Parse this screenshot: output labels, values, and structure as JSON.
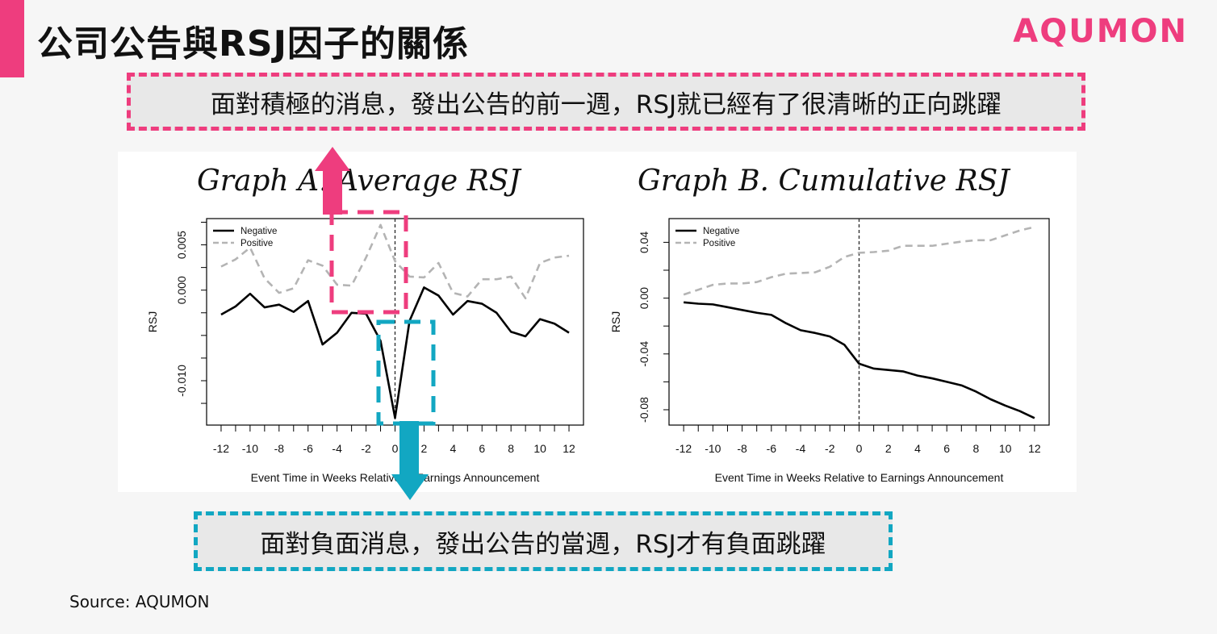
{
  "header": {
    "title": "公司公告與RSJ因子的關係",
    "brand": "AQUMON"
  },
  "callouts": {
    "top": "面對積極的消息，發出公告的前一週，RSJ就已經有了很清晰的正向跳躍",
    "bottom": "面對負面消息，發出公告的當週，RSJ才有負面跳躍"
  },
  "footer": {
    "source": "Source: AQUMON"
  },
  "colors": {
    "accent": "#ee3d7e",
    "teal": "#12a7c2",
    "negative": "#000000",
    "positive": "#b4b4b4"
  },
  "chart_data": [
    {
      "type": "line",
      "title": "Graph A. Average RSJ",
      "xlabel": "Event Time in Weeks Relative to Earnings Announcement",
      "ylabel": "RSJ",
      "xlim": [
        -13,
        13
      ],
      "ylim": [
        -0.0149,
        0.0079
      ],
      "xticks": [
        -12,
        -10,
        -8,
        -6,
        -4,
        -2,
        0,
        2,
        4,
        6,
        8,
        10,
        12
      ],
      "yticks": [
        -0.01,
        0.0,
        0.005
      ],
      "ytick_labels": [
        "-0.010",
        "0.000",
        "0.005"
      ],
      "legend": "top-left",
      "x": [
        -12,
        -11,
        -10,
        -9,
        -8,
        -7,
        -6,
        -5,
        -4,
        -3,
        -2,
        -1,
        0,
        1,
        2,
        3,
        4,
        5,
        6,
        7,
        8,
        9,
        10,
        11,
        12
      ],
      "series": [
        {
          "name": "Negative",
          "style": "solid",
          "values": [
            -0.0027,
            -0.0018,
            -0.0004,
            -0.0019,
            -0.0016,
            -0.0024,
            -0.0012,
            -0.006,
            -0.0047,
            -0.0025,
            -0.0026,
            -0.0056,
            -0.0141,
            -0.0034,
            0.0003,
            -0.0006,
            -0.0027,
            -0.0012,
            -0.0015,
            -0.0025,
            -0.0046,
            -0.0051,
            -0.0032,
            -0.0037,
            -0.0047
          ]
        },
        {
          "name": "Positive",
          "style": "dashed",
          "values": [
            0.0026,
            0.0034,
            0.0047,
            0.0013,
            -0.0003,
            0.0002,
            0.0033,
            0.0027,
            0.0006,
            0.0005,
            0.0036,
            0.0072,
            0.0032,
            0.0015,
            0.0014,
            0.003,
            -0.0003,
            -0.0007,
            0.0012,
            0.0012,
            0.0015,
            -0.0009,
            0.003,
            0.0036,
            0.0038
          ]
        }
      ]
    },
    {
      "type": "line",
      "title": "Graph B. Cumulative RSJ",
      "xlabel": "Event Time in Weeks Relative to Earnings Announcement",
      "ylabel": "RSJ",
      "xlim": [
        -13,
        13
      ],
      "ylim": [
        -0.091,
        0.057
      ],
      "xticks": [
        -12,
        -10,
        -8,
        -6,
        -4,
        -2,
        0,
        2,
        4,
        6,
        8,
        10,
        12
      ],
      "yticks": [
        -0.08,
        -0.04,
        0.0,
        0.04
      ],
      "ytick_labels": [
        "-0.08",
        "-0.04",
        "0.00",
        "0.04"
      ],
      "legend": "top-left",
      "x": [
        -12,
        -11,
        -10,
        -9,
        -8,
        -7,
        -6,
        -5,
        -4,
        -3,
        -2,
        -1,
        0,
        1,
        2,
        3,
        4,
        5,
        6,
        7,
        8,
        9,
        10,
        11,
        12
      ],
      "series": [
        {
          "name": "Negative",
          "style": "solid",
          "values": [
            -0.003,
            -0.004,
            -0.0045,
            -0.0065,
            -0.0085,
            -0.0105,
            -0.012,
            -0.018,
            -0.023,
            -0.025,
            -0.0275,
            -0.0335,
            -0.047,
            -0.0505,
            -0.0515,
            -0.0525,
            -0.0555,
            -0.0575,
            -0.06,
            -0.0625,
            -0.067,
            -0.0725,
            -0.077,
            -0.081,
            -0.086
          ]
        },
        {
          "name": "Positive",
          "style": "dashed",
          "values": [
            0.0025,
            0.006,
            0.0095,
            0.0105,
            0.0105,
            0.0115,
            0.015,
            0.0175,
            0.018,
            0.0185,
            0.0225,
            0.0295,
            0.0325,
            0.033,
            0.034,
            0.0375,
            0.0375,
            0.0375,
            0.039,
            0.0405,
            0.0415,
            0.0415,
            0.045,
            0.0485,
            0.051
          ]
        }
      ]
    }
  ]
}
